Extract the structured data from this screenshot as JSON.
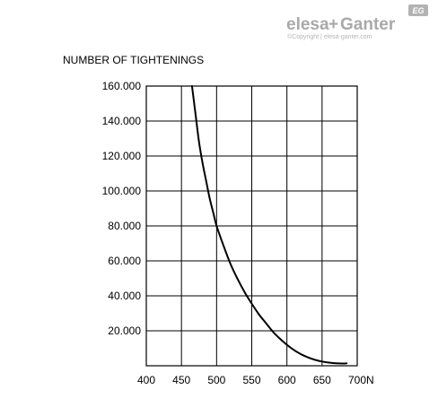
{
  "brand": {
    "logo_name": "elesa",
    "logo_plus": "+",
    "logo_name2": "Ganter",
    "copyright": "©Copyright | elesa-ganter.com",
    "badge": "EG",
    "color": "#a9a9a9"
  },
  "chart_data": {
    "type": "line",
    "title": "NUMBER OF TIGHTENINGS",
    "xlabel": "",
    "ylabel": "",
    "x_unit": "N",
    "xlim": [
      400,
      700
    ],
    "ylim": [
      0,
      160000
    ],
    "x_ticks": [
      "400",
      "450",
      "500",
      "550",
      "600",
      "650",
      "700"
    ],
    "y_ticks": [
      "20.000",
      "40.000",
      "60.000",
      "80.000",
      "100.000",
      "120.000",
      "140.000",
      "160.000"
    ],
    "grid": true,
    "line_color": "#000000",
    "series": [
      {
        "x": [
          465,
          470,
          475,
          480,
          485,
          490,
          495,
          500,
          510,
          520,
          530,
          540,
          550,
          560,
          570,
          580,
          590,
          600,
          610,
          620,
          630,
          640,
          650,
          660,
          670,
          680,
          685
        ],
        "y": [
          160000,
          144000,
          128000,
          116000,
          106000,
          96000,
          88000,
          80000,
          68500,
          58000,
          49500,
          42000,
          35500,
          29500,
          24500,
          19500,
          15500,
          12000,
          9000,
          6600,
          4800,
          3400,
          2400,
          1800,
          1400,
          1300,
          1400
        ]
      }
    ]
  }
}
